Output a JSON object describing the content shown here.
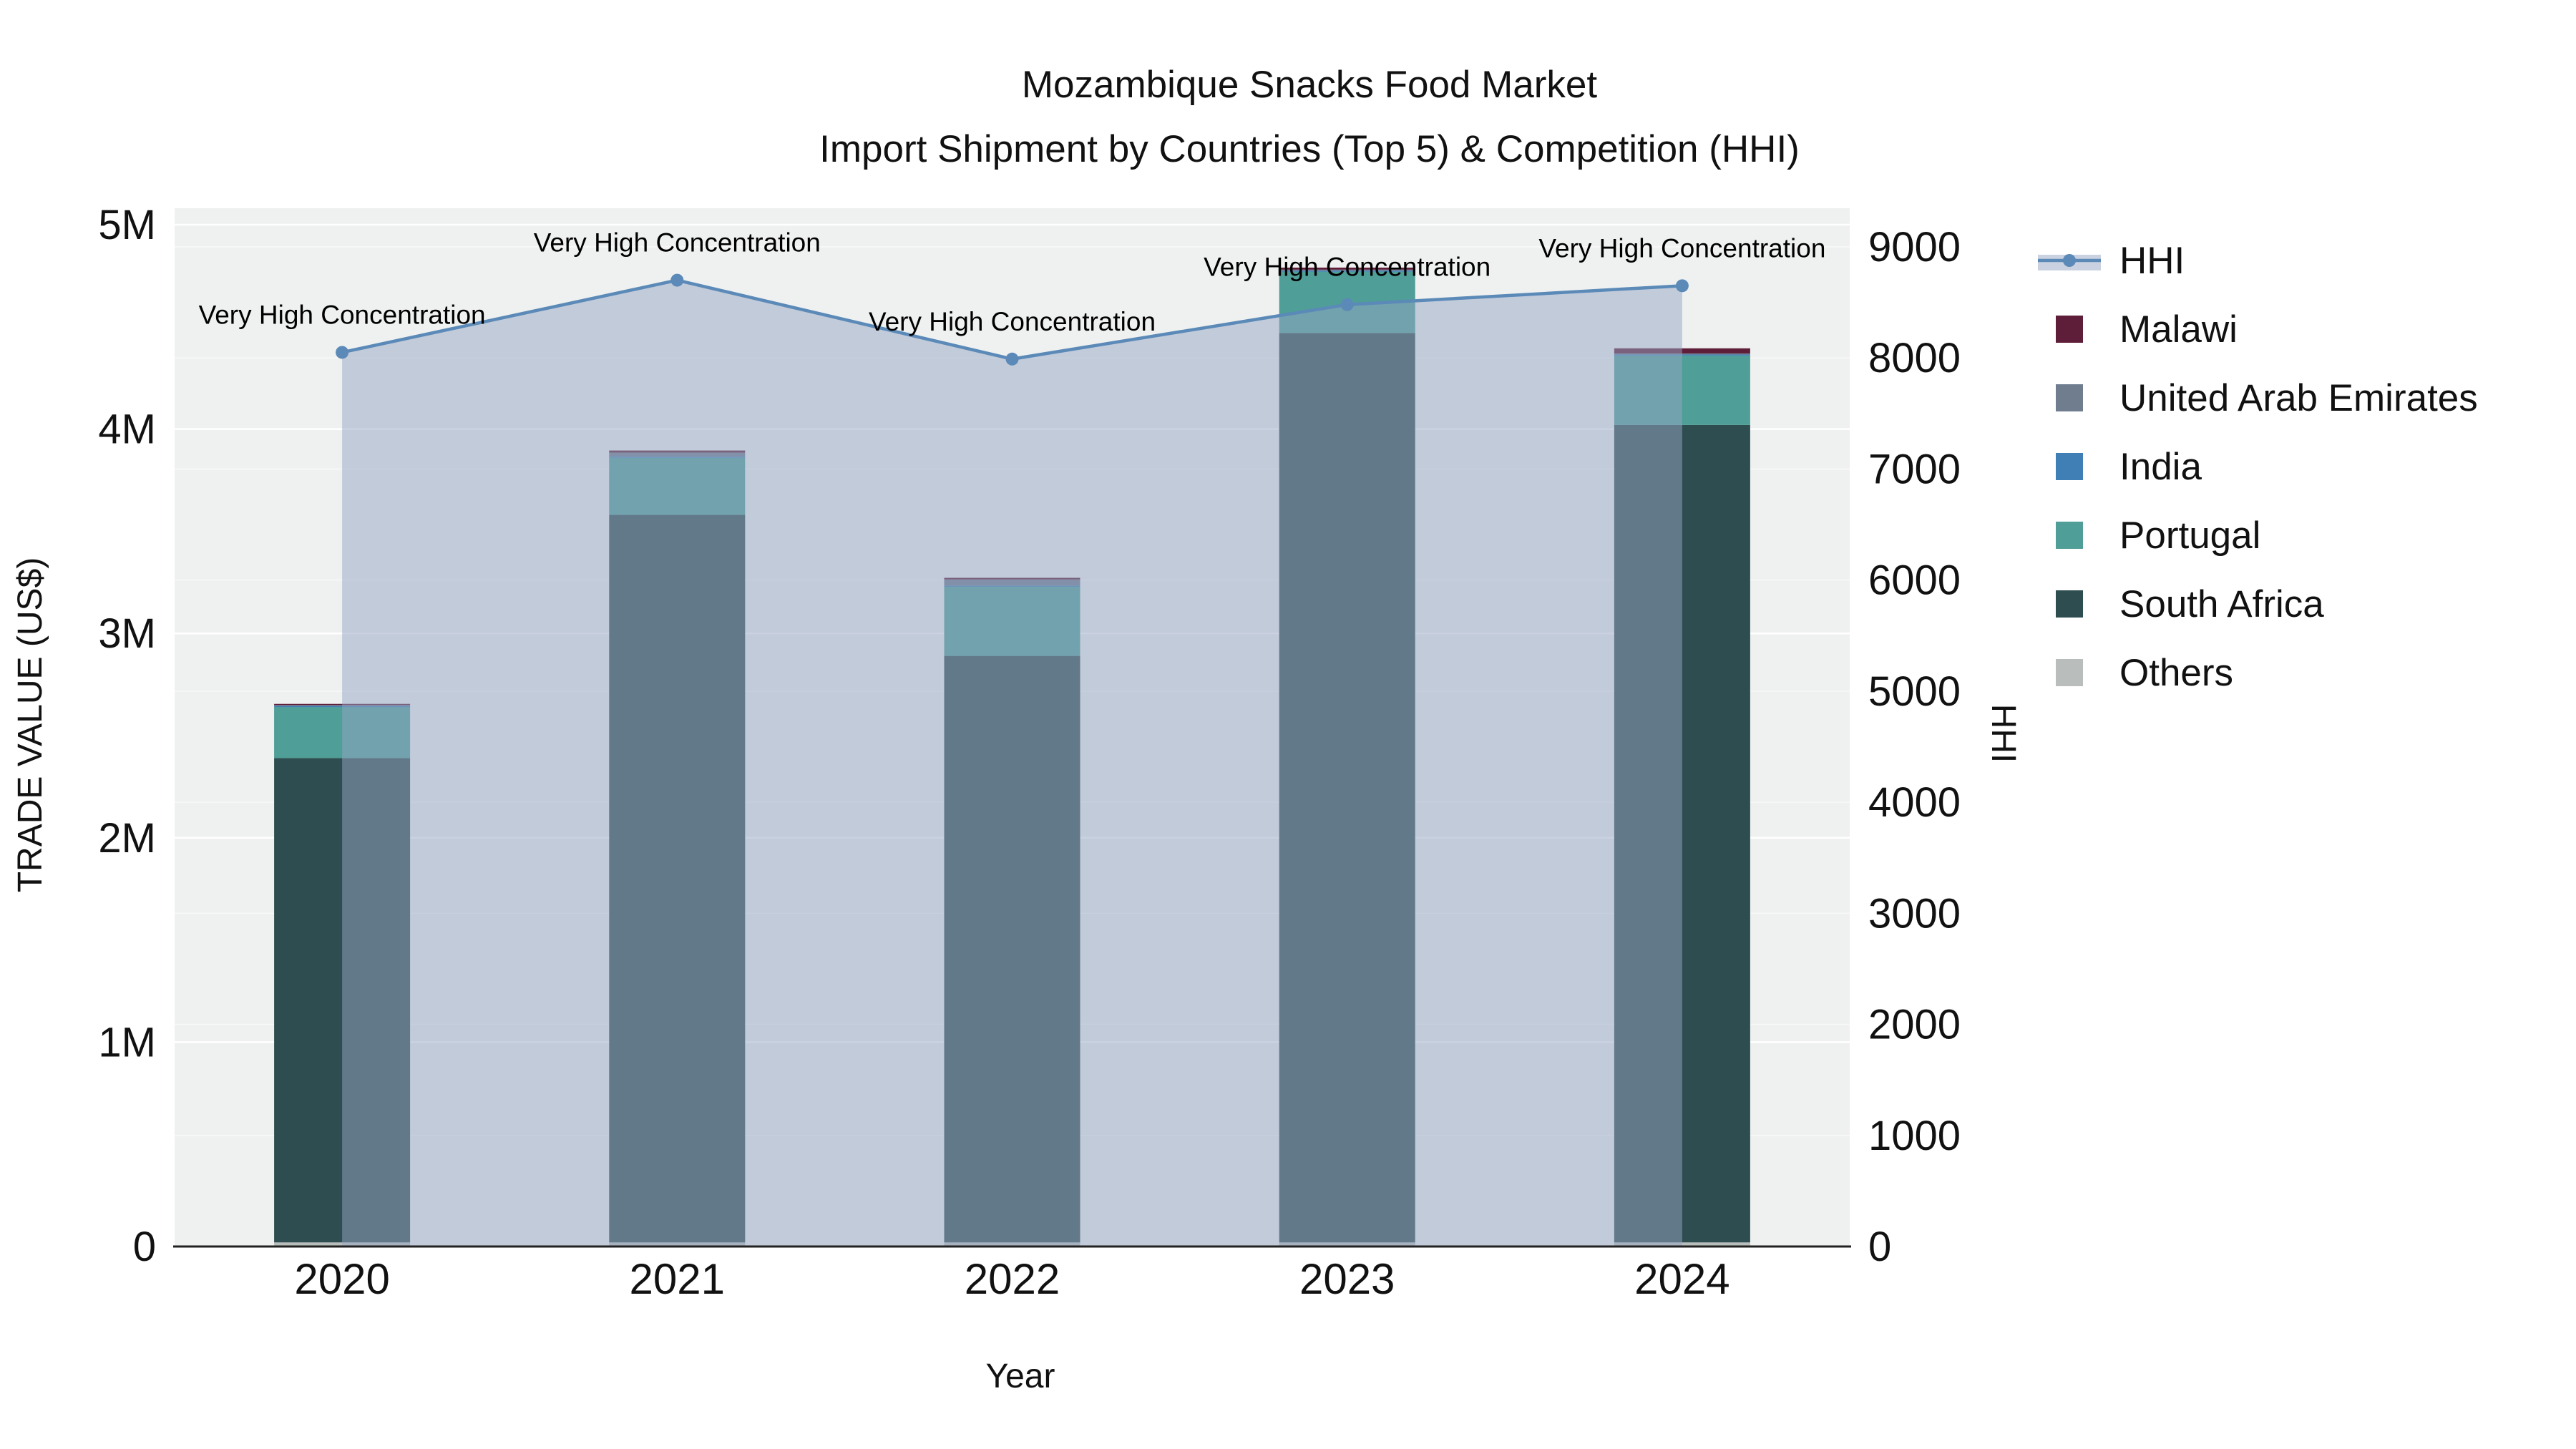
{
  "chart_data": {
    "type": "combo_stacked_bar_line",
    "title_line1": "Mozambique Snacks Food Market",
    "title_line2": "Import Shipment by Countries (Top 5) & Competition (HHI)",
    "xlabel": "Year",
    "ylabel_left": "TRADE VALUE (US$)",
    "ylabel_right": "HHI",
    "categories": [
      "2020",
      "2021",
      "2022",
      "2023",
      "2024"
    ],
    "bar_value_unit": "millions US$",
    "bar_series": [
      {
        "name": "Others",
        "color": "#b9bdbc",
        "values": [
          0.02,
          0.02,
          0.02,
          0.02,
          0.02
        ]
      },
      {
        "name": "South Africa",
        "color": "#2e4d50",
        "values": [
          2.37,
          3.56,
          2.87,
          4.45,
          4.0
        ]
      },
      {
        "name": "Portugal",
        "color": "#4f9e97",
        "values": [
          0.25,
          0.28,
          0.34,
          0.3,
          0.34
        ]
      },
      {
        "name": "India",
        "color": "#3f7fb5",
        "values": [
          0.005,
          0.005,
          0.004,
          0.005,
          0.005
        ]
      },
      {
        "name": "United Arab Emirates",
        "color": "#6f7d8f",
        "values": [
          0.005,
          0.02,
          0.03,
          0.005,
          0.005
        ]
      },
      {
        "name": "Malawi",
        "color": "#5e1d38",
        "values": [
          0.005,
          0.01,
          0.008,
          0.01,
          0.025
        ]
      }
    ],
    "bar_totals_millions": [
      2.655,
      3.895,
      3.272,
      4.79,
      4.395
    ],
    "hhi_line": {
      "name": "HHI",
      "color": "#5b8ab8",
      "area_fill": "rgba(150,165,195,0.5)",
      "values": [
        8050,
        8700,
        7990,
        8480,
        8650
      ]
    },
    "annotations": [
      "Very High Concentration",
      "Very High Concentration",
      "Very High Concentration",
      "Very High Concentration",
      "Very High Concentration"
    ],
    "axes": {
      "left": {
        "min": 0,
        "max": 5,
        "tick_values": [
          0,
          1,
          2,
          3,
          4,
          5
        ],
        "tick_labels": [
          "0",
          "1M",
          "2M",
          "3M",
          "4M",
          "5M"
        ]
      },
      "right": {
        "min": 0,
        "max": 9000,
        "tick_step": 1000
      }
    },
    "legend": [
      {
        "label": "HHI",
        "color": "#5b8ab8",
        "type": "line"
      },
      {
        "label": "Malawi",
        "color": "#5e1d38",
        "type": "swatch"
      },
      {
        "label": "United Arab Emirates",
        "color": "#6f7d8f",
        "type": "swatch"
      },
      {
        "label": "India",
        "color": "#3f7fb5",
        "type": "swatch"
      },
      {
        "label": "Portugal",
        "color": "#4f9e97",
        "type": "swatch"
      },
      {
        "label": "South Africa",
        "color": "#2e4d50",
        "type": "swatch"
      },
      {
        "label": "Others",
        "color": "#b9bdbc",
        "type": "swatch"
      }
    ],
    "plot_background": "#eff1f0"
  }
}
